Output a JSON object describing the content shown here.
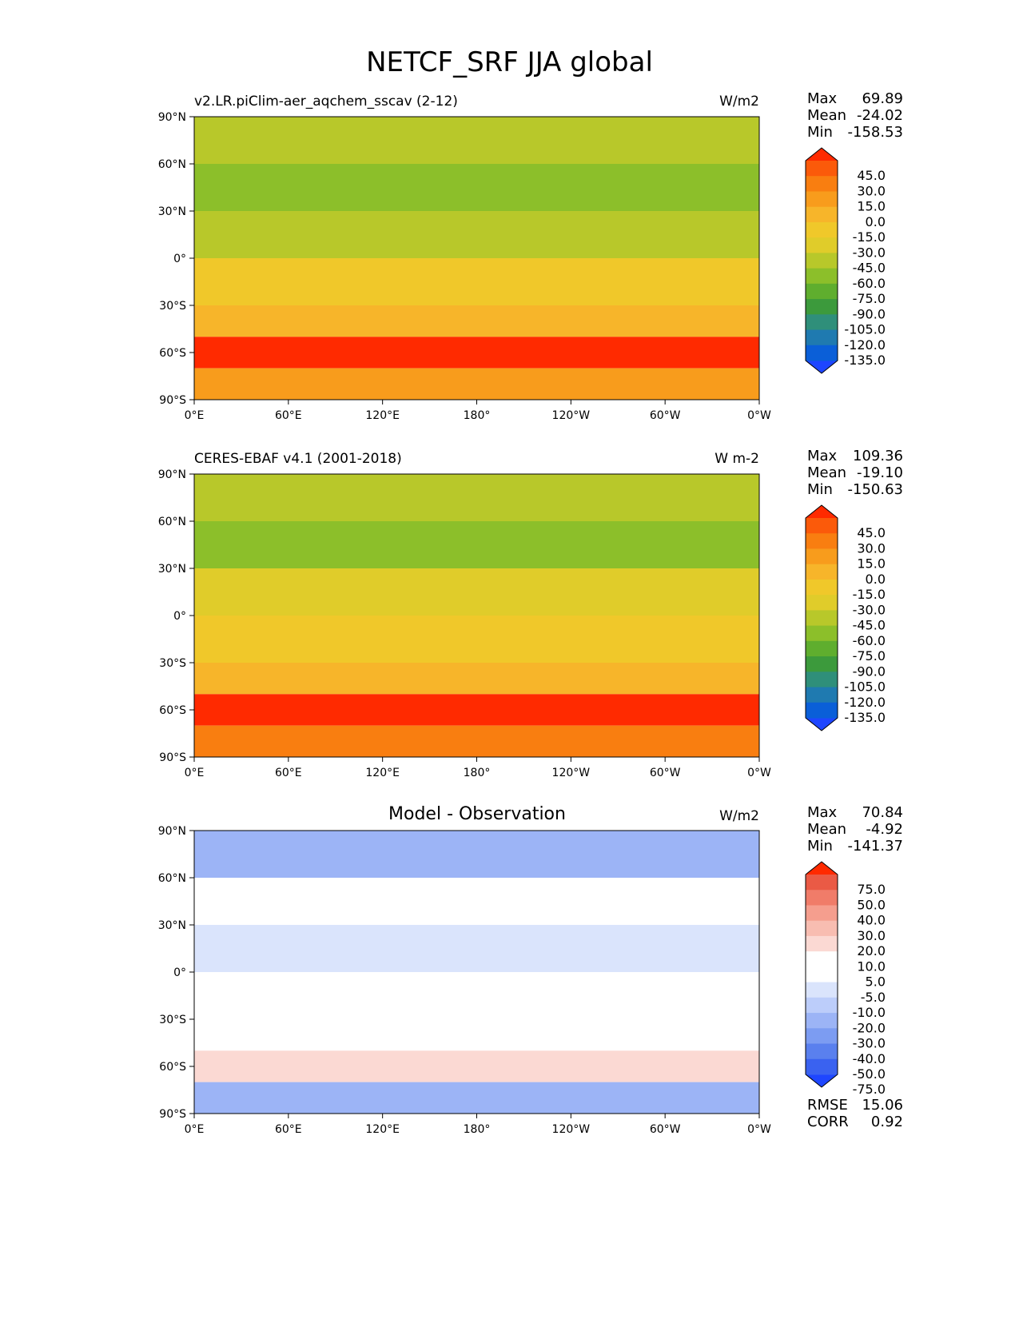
{
  "title": "NETCF_SRF JJA global",
  "lat_labels": [
    "90°N",
    "60°N",
    "30°N",
    "0°",
    "30°S",
    "60°S",
    "90°S"
  ],
  "lon_labels": [
    "0°E",
    "60°E",
    "120°E",
    "180°",
    "120°W",
    "60°W",
    "0°W"
  ],
  "stat_labels": {
    "max": "Max",
    "mean": "Mean",
    "min": "Min",
    "rmse": "RMSE",
    "corr": "CORR"
  },
  "colors": {
    "main_scale": [
      "#1e46ff",
      "#0a5fd8",
      "#1f7ab0",
      "#2f8f7a",
      "#3c9a3c",
      "#5fae2e",
      "#8cbf2a",
      "#b8c82a",
      "#e0cc2a",
      "#f0c82a",
      "#f7b52a",
      "#f89c1c",
      "#f97e10",
      "#fb5a0a",
      "#ff2a00"
    ],
    "diff_scale": [
      "#1e46ff",
      "#3a62f0",
      "#5a80ee",
      "#7c9cf2",
      "#9cb4f6",
      "#bccdfa",
      "#dae4fc",
      "#ffffff",
      "#ffffff",
      "#fbd9d3",
      "#f8bdb1",
      "#f59e8e",
      "#f07c69",
      "#ea5a45",
      "#ff2a00"
    ]
  },
  "chart_data": [
    {
      "type": "heatmap",
      "title": "v2.LR.piClim-aer_aqchem_sscav (2-12)",
      "units": "W/m2",
      "stats": {
        "max": "69.89",
        "mean": "-24.02",
        "min": "-158.53"
      },
      "colorbar_levels": [
        "45.0",
        "30.0",
        "15.0",
        "0.0",
        "-15.0",
        "-30.0",
        "-45.0",
        "-60.0",
        "-75.0",
        "-90.0",
        "-105.0",
        "-120.0",
        "-135.0"
      ],
      "xlim": [
        0,
        360
      ],
      "ylim": [
        -90,
        90
      ],
      "zonal_bands": [
        {
          "lat": [
            60,
            90
          ],
          "value": -55
        },
        {
          "lat": [
            30,
            60
          ],
          "value": -70
        },
        {
          "lat": [
            0,
            30
          ],
          "value": -45
        },
        {
          "lat": [
            -30,
            0
          ],
          "value": -22
        },
        {
          "lat": [
            -50,
            -30
          ],
          "value": -5
        },
        {
          "lat": [
            -70,
            -50
          ],
          "value": 50
        },
        {
          "lat": [
            -90,
            -70
          ],
          "value": 10
        }
      ]
    },
    {
      "type": "heatmap",
      "title": "CERES-EBAF v4.1 (2001-2018)",
      "units": "W m-2",
      "stats": {
        "max": "109.36",
        "mean": "-19.10",
        "min": "-150.63"
      },
      "colorbar_levels": [
        "45.0",
        "30.0",
        "15.0",
        "0.0",
        "-15.0",
        "-30.0",
        "-45.0",
        "-60.0",
        "-75.0",
        "-90.0",
        "-105.0",
        "-120.0",
        "-135.0"
      ],
      "xlim": [
        0,
        360
      ],
      "ylim": [
        -90,
        90
      ],
      "zonal_bands": [
        {
          "lat": [
            60,
            90
          ],
          "value": -50
        },
        {
          "lat": [
            30,
            60
          ],
          "value": -65
        },
        {
          "lat": [
            0,
            30
          ],
          "value": -40
        },
        {
          "lat": [
            -30,
            0
          ],
          "value": -18
        },
        {
          "lat": [
            -50,
            -30
          ],
          "value": 0
        },
        {
          "lat": [
            -70,
            -50
          ],
          "value": 50
        },
        {
          "lat": [
            -90,
            -70
          ],
          "value": 30
        }
      ]
    },
    {
      "type": "heatmap",
      "title": "Model - Observation",
      "units": "W/m2",
      "stats": {
        "max": "70.84",
        "mean": "-4.92",
        "min": "-141.37"
      },
      "metrics": {
        "rmse": "15.06",
        "corr": "0.92"
      },
      "colorbar_levels": [
        "75.0",
        "50.0",
        "40.0",
        "30.0",
        "20.0",
        "10.0",
        "5.0",
        "-5.0",
        "-10.0",
        "-20.0",
        "-30.0",
        "-40.0",
        "-50.0",
        "-75.0"
      ],
      "xlim": [
        0,
        360
      ],
      "ylim": [
        -90,
        90
      ],
      "zonal_bands": [
        {
          "lat": [
            60,
            90
          ],
          "value": -20
        },
        {
          "lat": [
            30,
            60
          ],
          "value": 0
        },
        {
          "lat": [
            0,
            30
          ],
          "value": -8
        },
        {
          "lat": [
            -30,
            0
          ],
          "value": 0
        },
        {
          "lat": [
            -50,
            -30
          ],
          "value": 0
        },
        {
          "lat": [
            -70,
            -50
          ],
          "value": 15
        },
        {
          "lat": [
            -90,
            -70
          ],
          "value": -25
        }
      ]
    }
  ]
}
